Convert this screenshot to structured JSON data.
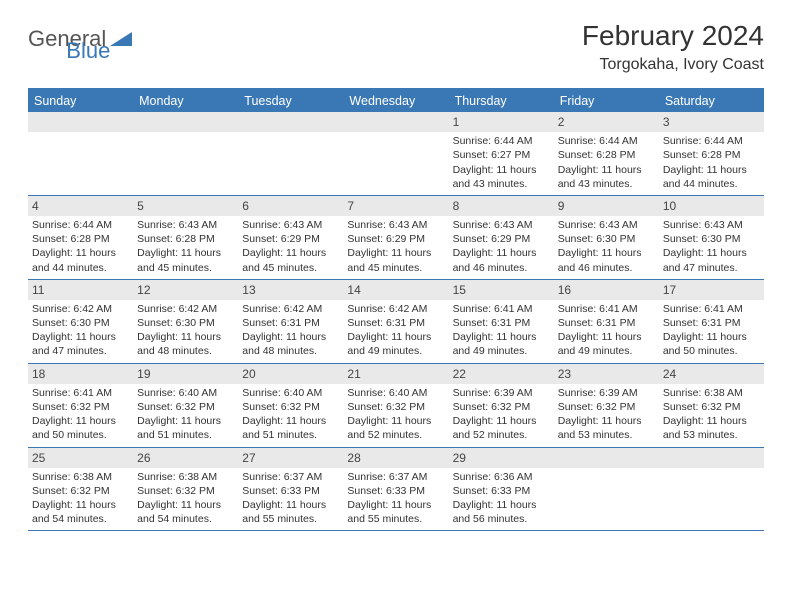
{
  "logo": {
    "text1": "General",
    "text2": "Blue"
  },
  "title": "February 2024",
  "location": "Torgokaha, Ivory Coast",
  "colors": {
    "accent": "#3a78b5",
    "headerBg": "#3a78b5",
    "dayNumBg": "#e9e9e9"
  },
  "weekdays": [
    "Sunday",
    "Monday",
    "Tuesday",
    "Wednesday",
    "Thursday",
    "Friday",
    "Saturday"
  ],
  "startOffset": 4,
  "days": [
    {
      "n": 1,
      "sunrise": "6:44 AM",
      "sunset": "6:27 PM",
      "dlH": 11,
      "dlM": 43
    },
    {
      "n": 2,
      "sunrise": "6:44 AM",
      "sunset": "6:28 PM",
      "dlH": 11,
      "dlM": 43
    },
    {
      "n": 3,
      "sunrise": "6:44 AM",
      "sunset": "6:28 PM",
      "dlH": 11,
      "dlM": 44
    },
    {
      "n": 4,
      "sunrise": "6:44 AM",
      "sunset": "6:28 PM",
      "dlH": 11,
      "dlM": 44
    },
    {
      "n": 5,
      "sunrise": "6:43 AM",
      "sunset": "6:28 PM",
      "dlH": 11,
      "dlM": 45
    },
    {
      "n": 6,
      "sunrise": "6:43 AM",
      "sunset": "6:29 PM",
      "dlH": 11,
      "dlM": 45
    },
    {
      "n": 7,
      "sunrise": "6:43 AM",
      "sunset": "6:29 PM",
      "dlH": 11,
      "dlM": 45
    },
    {
      "n": 8,
      "sunrise": "6:43 AM",
      "sunset": "6:29 PM",
      "dlH": 11,
      "dlM": 46
    },
    {
      "n": 9,
      "sunrise": "6:43 AM",
      "sunset": "6:30 PM",
      "dlH": 11,
      "dlM": 46
    },
    {
      "n": 10,
      "sunrise": "6:43 AM",
      "sunset": "6:30 PM",
      "dlH": 11,
      "dlM": 47
    },
    {
      "n": 11,
      "sunrise": "6:42 AM",
      "sunset": "6:30 PM",
      "dlH": 11,
      "dlM": 47
    },
    {
      "n": 12,
      "sunrise": "6:42 AM",
      "sunset": "6:30 PM",
      "dlH": 11,
      "dlM": 48
    },
    {
      "n": 13,
      "sunrise": "6:42 AM",
      "sunset": "6:31 PM",
      "dlH": 11,
      "dlM": 48
    },
    {
      "n": 14,
      "sunrise": "6:42 AM",
      "sunset": "6:31 PM",
      "dlH": 11,
      "dlM": 49
    },
    {
      "n": 15,
      "sunrise": "6:41 AM",
      "sunset": "6:31 PM",
      "dlH": 11,
      "dlM": 49
    },
    {
      "n": 16,
      "sunrise": "6:41 AM",
      "sunset": "6:31 PM",
      "dlH": 11,
      "dlM": 49
    },
    {
      "n": 17,
      "sunrise": "6:41 AM",
      "sunset": "6:31 PM",
      "dlH": 11,
      "dlM": 50
    },
    {
      "n": 18,
      "sunrise": "6:41 AM",
      "sunset": "6:32 PM",
      "dlH": 11,
      "dlM": 50
    },
    {
      "n": 19,
      "sunrise": "6:40 AM",
      "sunset": "6:32 PM",
      "dlH": 11,
      "dlM": 51
    },
    {
      "n": 20,
      "sunrise": "6:40 AM",
      "sunset": "6:32 PM",
      "dlH": 11,
      "dlM": 51
    },
    {
      "n": 21,
      "sunrise": "6:40 AM",
      "sunset": "6:32 PM",
      "dlH": 11,
      "dlM": 52
    },
    {
      "n": 22,
      "sunrise": "6:39 AM",
      "sunset": "6:32 PM",
      "dlH": 11,
      "dlM": 52
    },
    {
      "n": 23,
      "sunrise": "6:39 AM",
      "sunset": "6:32 PM",
      "dlH": 11,
      "dlM": 53
    },
    {
      "n": 24,
      "sunrise": "6:38 AM",
      "sunset": "6:32 PM",
      "dlH": 11,
      "dlM": 53
    },
    {
      "n": 25,
      "sunrise": "6:38 AM",
      "sunset": "6:32 PM",
      "dlH": 11,
      "dlM": 54
    },
    {
      "n": 26,
      "sunrise": "6:38 AM",
      "sunset": "6:32 PM",
      "dlH": 11,
      "dlM": 54
    },
    {
      "n": 27,
      "sunrise": "6:37 AM",
      "sunset": "6:33 PM",
      "dlH": 11,
      "dlM": 55
    },
    {
      "n": 28,
      "sunrise": "6:37 AM",
      "sunset": "6:33 PM",
      "dlH": 11,
      "dlM": 55
    },
    {
      "n": 29,
      "sunrise": "6:36 AM",
      "sunset": "6:33 PM",
      "dlH": 11,
      "dlM": 56
    }
  ],
  "labels": {
    "sunrise": "Sunrise:",
    "sunset": "Sunset:",
    "daylight": "Daylight:",
    "hours": "hours",
    "and": "and",
    "minutes": "minutes."
  }
}
